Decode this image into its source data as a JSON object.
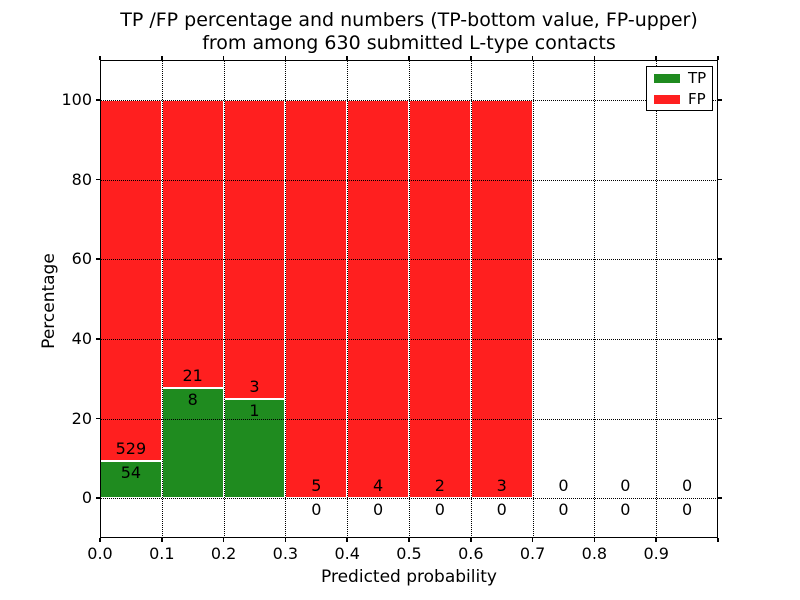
{
  "figure": {
    "title_line1": "TP /FP percentage and numbers (TP-bottom value, FP-upper)",
    "title_line2": "from among 630 submitted L-type contacts"
  },
  "chart_data": {
    "type": "bar",
    "stacked": true,
    "title": "TP /FP percentage and numbers (TP-bottom value, FP-upper)\nfrom among 630 submitted L-type contacts",
    "xlabel": "Predicted probability",
    "ylabel": "Percentage",
    "xlim": [
      0.0,
      1.0
    ],
    "ylim": [
      -10,
      110
    ],
    "x_tick_labels": [
      "0.0",
      "0.1",
      "0.2",
      "0.3",
      "0.4",
      "0.5",
      "0.6",
      "0.7",
      "0.8",
      "0.9"
    ],
    "y_tick_values": [
      0,
      20,
      40,
      60,
      80,
      100
    ],
    "bin_edges": [
      0.0,
      0.1,
      0.2,
      0.3,
      0.4,
      0.5,
      0.6,
      0.7,
      0.8,
      0.9,
      1.0
    ],
    "total_contacts": 630,
    "series": [
      {
        "name": "TP",
        "color": "#1f8b1f",
        "counts": [
          54,
          8,
          1,
          0,
          0,
          0,
          0,
          0,
          0,
          0
        ],
        "percent": [
          9.26,
          27.59,
          25.0,
          0,
          0,
          0,
          0,
          0,
          0,
          0
        ]
      },
      {
        "name": "FP",
        "color": "#ff1f1f",
        "counts": [
          529,
          21,
          3,
          5,
          4,
          2,
          3,
          0,
          0,
          0
        ],
        "percent": [
          90.74,
          72.41,
          75.0,
          100,
          100,
          100,
          100,
          0,
          0,
          0
        ]
      }
    ],
    "legend": {
      "position": "upper right",
      "entries": [
        {
          "label": "TP",
          "color": "#1f8b1f"
        },
        {
          "label": "FP",
          "color": "#ff1f1f"
        }
      ]
    },
    "grid": "dotted",
    "annotation_note": "FP count shown above TP/FP boundary, TP count shown below it"
  }
}
